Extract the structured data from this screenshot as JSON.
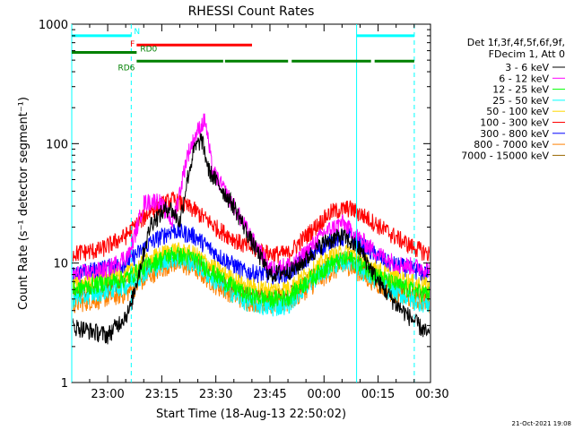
{
  "chart_data": {
    "type": "line",
    "title": "RHESSI Count Rates",
    "xlabel": "Start Time (18-Aug-13 22:50:02)",
    "ylabel": "Count Rate (s⁻¹ detector segment⁻¹)",
    "yscale": "log",
    "ylim": [
      1,
      1000
    ],
    "xlim": [
      "22:50:02",
      "00:29:30"
    ],
    "x_ticks": [
      "23:00",
      "23:15",
      "23:30",
      "23:45",
      "00:00",
      "00:15",
      "00:30"
    ],
    "y_ticks": [
      "1",
      "10",
      "100",
      "1000"
    ],
    "x_unit": "minutes since 22:50:02",
    "grid": false,
    "legend_position": "right",
    "legend_header": [
      "Det 1f,3f,4f,5f,6f,9f,",
      "FDecim 1, Att 0"
    ],
    "footer": "21-Oct-2021 19:08",
    "series": [
      {
        "name": "3 - 6 keV",
        "color": "#000000",
        "x": [
          0,
          10,
          16,
          22,
          27,
          30,
          32,
          34,
          36,
          38,
          45,
          50,
          55,
          62,
          70,
          75,
          80,
          85,
          90,
          94,
          99
        ],
        "y": [
          3,
          2.5,
          4,
          22,
          30,
          22,
          50,
          90,
          110,
          60,
          30,
          15,
          8,
          9,
          15,
          17,
          13,
          7,
          4.5,
          3.5,
          2.5
        ]
      },
      {
        "name": "6 - 12 keV",
        "color": "#ff00ff",
        "x": [
          0,
          10,
          16,
          20,
          24,
          28,
          30,
          32,
          35,
          37,
          39,
          45,
          50,
          55,
          62,
          70,
          75,
          80,
          85,
          90,
          99
        ],
        "y": [
          8,
          9,
          12,
          32,
          34,
          22,
          40,
          80,
          130,
          160,
          60,
          30,
          16,
          9,
          10,
          18,
          22,
          16,
          12,
          10,
          9
        ]
      },
      {
        "name": "12 - 25 keV",
        "color": "#00ff00",
        "x": [
          0,
          15,
          22,
          28,
          34,
          40,
          48,
          55,
          60,
          65,
          72,
          77,
          82,
          88,
          94,
          99
        ],
        "y": [
          6,
          7.5,
          10,
          12,
          11,
          8,
          5.5,
          5,
          5.2,
          7,
          10,
          11,
          9,
          7,
          6,
          5.5
        ]
      },
      {
        "name": "25 - 50 keV",
        "color": "#00ffff",
        "x": [
          0,
          15,
          22,
          28,
          34,
          40,
          48,
          55,
          60,
          65,
          72,
          77,
          82,
          88,
          94,
          99
        ],
        "y": [
          5,
          6.5,
          9,
          11,
          10,
          7,
          4.8,
          4.2,
          4.5,
          6.5,
          9.5,
          10.5,
          8,
          6,
          5,
          4.5
        ]
      },
      {
        "name": "50 - 100 keV",
        "color": "#ffd700",
        "x": [
          0,
          15,
          22,
          28,
          34,
          40,
          48,
          55,
          60,
          65,
          72,
          77,
          82,
          88,
          94,
          99
        ],
        "y": [
          6.5,
          8,
          11,
          13,
          12,
          9,
          6.5,
          6,
          6.2,
          8,
          11.5,
          12.5,
          10,
          8,
          7,
          6.5
        ]
      },
      {
        "name": "100 - 300 keV",
        "color": "#ff0000",
        "x": [
          0,
          8,
          15,
          22,
          28,
          34,
          40,
          48,
          55,
          60,
          65,
          72,
          77,
          82,
          88,
          94,
          99
        ],
        "y": [
          12,
          13,
          17,
          28,
          34,
          28,
          20,
          14,
          12,
          12,
          17,
          27,
          29,
          24,
          18,
          14,
          12
        ]
      },
      {
        "name": "300 - 800 keV",
        "color": "#0000ff",
        "x": [
          0,
          15,
          22,
          28,
          34,
          40,
          48,
          55,
          60,
          65,
          72,
          77,
          82,
          88,
          94,
          99
        ],
        "y": [
          8,
          10,
          15,
          19,
          17,
          12,
          8.5,
          8,
          8.2,
          11,
          15.5,
          17,
          13,
          10,
          9,
          8
        ]
      },
      {
        "name": "800 - 7000 keV",
        "color": "#ff8000",
        "x": [
          0,
          15,
          22,
          28,
          34,
          40,
          48,
          55,
          60,
          65,
          72,
          77,
          82,
          88,
          94,
          99
        ],
        "y": [
          4.5,
          5.5,
          8,
          10,
          9,
          6.5,
          4.8,
          4.5,
          4.6,
          6,
          8.5,
          9.5,
          7.5,
          5.8,
          5,
          4.6
        ]
      },
      {
        "name": "7000 - 15000 keV",
        "color": "#996600",
        "x": [
          0,
          15,
          22,
          28,
          34,
          40,
          48,
          55,
          60,
          65,
          72,
          77,
          82,
          88,
          94,
          99
        ],
        "y": [
          5.5,
          6.8,
          9.5,
          11.5,
          10.5,
          7.5,
          5.5,
          5.2,
          5.4,
          7,
          10,
          11,
          8.8,
          6.8,
          6,
          5.5
        ]
      }
    ],
    "vertical_lines": [
      {
        "x": 0,
        "color": "#00ffff",
        "style": "solid"
      },
      {
        "x": 16.5,
        "color": "#00ffff",
        "style": "dashed"
      },
      {
        "x": 79,
        "color": "#00ffff",
        "style": "solid"
      },
      {
        "x": 95,
        "color": "#00ffff",
        "style": "dashed"
      }
    ],
    "flag_bars": [
      {
        "label": "N",
        "color": "#00ffff",
        "y": 800,
        "segments": [
          [
            0,
            16.5
          ],
          [
            79,
            95
          ]
        ]
      },
      {
        "label": "F",
        "color": "#ff0000",
        "y": 670,
        "segments": [
          [
            18,
            50
          ]
        ]
      },
      {
        "label": "RD0",
        "color": "#008000",
        "y": 580,
        "segments": [
          [
            0,
            18
          ]
        ]
      },
      {
        "label": "RD6",
        "color": "#008000",
        "y": 490,
        "segments": [
          [
            18,
            42
          ],
          [
            42.5,
            60
          ],
          [
            61,
            83
          ],
          [
            84,
            95
          ]
        ]
      }
    ]
  }
}
